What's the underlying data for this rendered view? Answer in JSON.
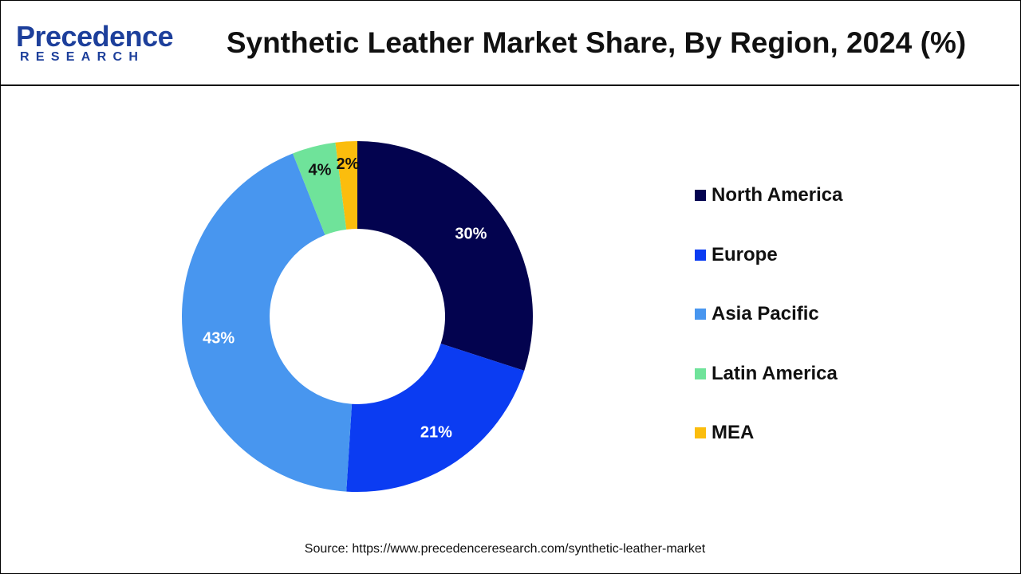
{
  "logo": {
    "name": "Precedence",
    "sub": "RESEARCH"
  },
  "chart_data": {
    "type": "pie",
    "variant": "donut",
    "title": "Synthetic Leather Market Share, By Region, 2024 (%)",
    "categories": [
      "North America",
      "Europe",
      "Asia Pacific",
      "Latin America",
      "MEA"
    ],
    "values": [
      30,
      21,
      43,
      4,
      2
    ],
    "labels": [
      "30%",
      "21%",
      "43%",
      "4%",
      "2%"
    ],
    "colors": [
      "#03034f",
      "#0b3cf2",
      "#4896ef",
      "#6fe39a",
      "#fbbd0d"
    ],
    "label_colors": [
      "#ffffff",
      "#ffffff",
      "#ffffff",
      "#111111",
      "#111111"
    ],
    "legend_position": "right"
  },
  "source": "Source: https://www.precedenceresearch.com/synthetic-leather-market"
}
